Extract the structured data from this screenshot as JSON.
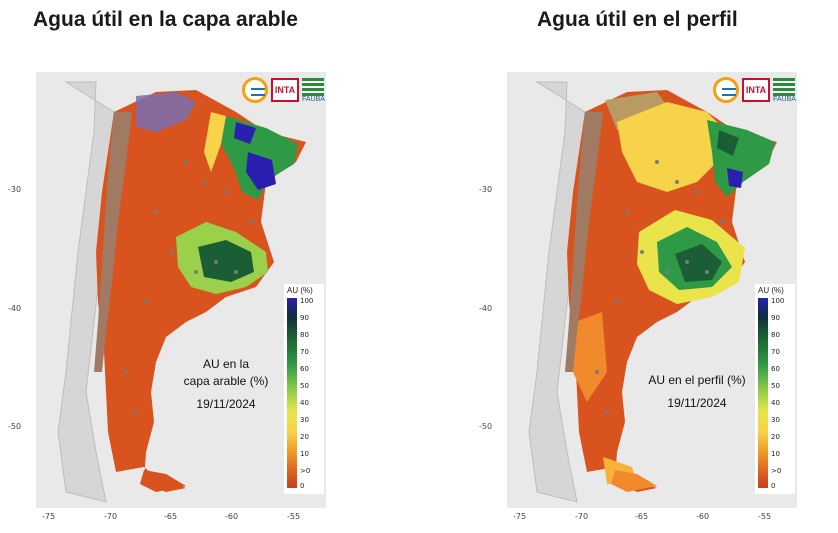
{
  "panels": [
    {
      "title": "Agua útil en la capa arable",
      "caption_lines": [
        "AU en la",
        "capa arable (%)",
        "19/11/2024"
      ],
      "legend_title": "AU (%)"
    },
    {
      "title": "Agua útil en el perfil",
      "caption_lines": [
        "AU en el perfil (%)",
        "19/11/2024"
      ],
      "legend_title": "AU (%)"
    }
  ],
  "axes": {
    "x_ticks": [
      "-75",
      "-70",
      "-65",
      "-60",
      "-55"
    ],
    "y_ticks": [
      "-30",
      "-40",
      "-50"
    ]
  },
  "legend_ticks": [
    "100",
    "90",
    "80",
    "70",
    "60",
    "50",
    "40",
    "30",
    "20",
    "10",
    ">0",
    "0"
  ],
  "logos": {
    "inta_label": "INTA",
    "fauba_label": "FAUBA"
  },
  "colors": {
    "dry_orange": "#d9531e",
    "light_orange": "#f08a2c",
    "yellow": "#f7d34a",
    "light_green": "#9ad04a",
    "green": "#2e9a45",
    "dark_green": "#1b5e35",
    "blue": "#2a1fb0",
    "mountain_brown": "#a07a62",
    "background": "#e9e9e9"
  }
}
